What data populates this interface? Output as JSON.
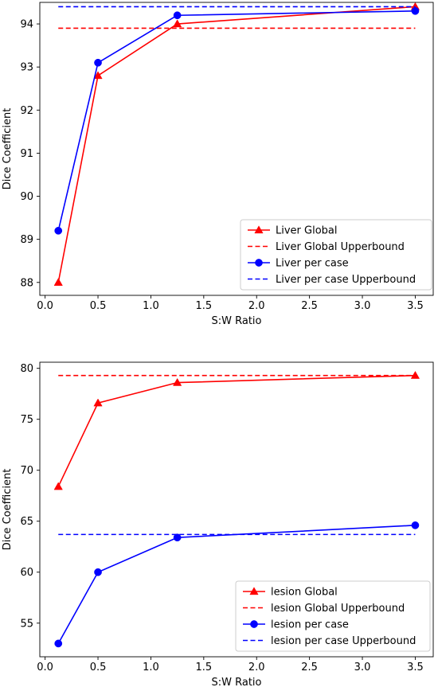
{
  "chart_data": [
    {
      "type": "line",
      "xlabel": "S:W Ratio",
      "ylabel": "Dice Coefficient",
      "xlim": [
        -0.05,
        3.67
      ],
      "ylim": [
        87.7,
        94.5
      ],
      "xticks": [
        "0.0",
        "0.5",
        "1.0",
        "1.5",
        "2.0",
        "2.5",
        "3.0",
        "3.5"
      ],
      "yticks": [
        "88",
        "89",
        "90",
        "91",
        "92",
        "93",
        "94"
      ],
      "legend_position": "lower right",
      "grid": false,
      "series": [
        {
          "name": "Liver Global",
          "color": "#ff0000",
          "style": "solid",
          "marker": "triangle",
          "x": [
            0.125,
            0.5,
            1.25,
            3.5
          ],
          "y": [
            88.0,
            92.8,
            94.0,
            94.4
          ]
        },
        {
          "name": "Liver Global Upperbound",
          "color": "#ff0000",
          "style": "dashed",
          "marker": "none",
          "x": [
            0.125,
            3.5
          ],
          "y": [
            93.9,
            93.9
          ]
        },
        {
          "name": "Liver per case",
          "color": "#0000ff",
          "style": "solid",
          "marker": "circle",
          "x": [
            0.125,
            0.5,
            1.25,
            3.5
          ],
          "y": [
            89.2,
            93.1,
            94.2,
            94.3
          ]
        },
        {
          "name": "Liver per case Upperbound",
          "color": "#0000ff",
          "style": "dashed",
          "marker": "none",
          "x": [
            0.125,
            3.5
          ],
          "y": [
            94.4,
            94.4
          ]
        }
      ]
    },
    {
      "type": "line",
      "xlabel": "S:W Ratio",
      "ylabel": "Dice Coefficient",
      "xlim": [
        -0.05,
        3.67
      ],
      "ylim": [
        51.7,
        80.6
      ],
      "xticks": [
        "0.0",
        "0.5",
        "1.0",
        "1.5",
        "2.0",
        "2.5",
        "3.0",
        "3.5"
      ],
      "yticks": [
        "55",
        "60",
        "65",
        "70",
        "75",
        "80"
      ],
      "legend_position": "lower right",
      "grid": false,
      "series": [
        {
          "name": "lesion Global",
          "color": "#ff0000",
          "style": "solid",
          "marker": "triangle",
          "x": [
            0.125,
            0.5,
            1.25,
            3.5
          ],
          "y": [
            68.4,
            76.6,
            78.6,
            79.3
          ]
        },
        {
          "name": "lesion Global Upperbound",
          "color": "#ff0000",
          "style": "dashed",
          "marker": "none",
          "x": [
            0.125,
            3.5
          ],
          "y": [
            79.3,
            79.3
          ]
        },
        {
          "name": "lesion per case",
          "color": "#0000ff",
          "style": "solid",
          "marker": "circle",
          "x": [
            0.125,
            0.5,
            1.25,
            3.5
          ],
          "y": [
            53.0,
            60.0,
            63.4,
            64.6
          ]
        },
        {
          "name": "lesion per case Upperbound",
          "color": "#0000ff",
          "style": "dashed",
          "marker": "none",
          "x": [
            0.125,
            3.5
          ],
          "y": [
            63.7,
            63.7
          ]
        }
      ]
    }
  ]
}
